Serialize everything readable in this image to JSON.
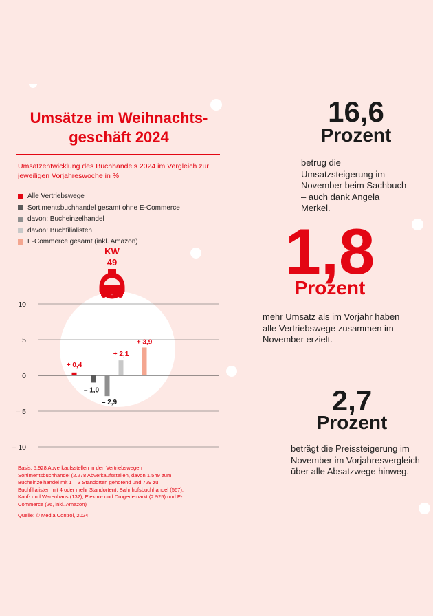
{
  "title": "Umsätze im Weihnachts-\ngeschäft 2024",
  "subtitle": "Umsatzentwicklung des Buchhandels 2024 im Vergleich zur jeweiligen Vorjahreswoche in %",
  "chart_data": {
    "type": "bar",
    "title": "Umsätze im Weihnachtsgeschäft 2024",
    "subtitle": "Umsatzentwicklung des Buchhandels 2024 im Vergleich zur jeweiligen Vorjahreswoche in %",
    "week_label": "KW",
    "week_number": "49",
    "xlabel": "",
    "ylabel": "",
    "ylim": [
      -10,
      10
    ],
    "yticks": [
      10,
      5,
      0,
      -5,
      -10
    ],
    "ytick_labels": [
      "10",
      "5",
      "0",
      "– 5",
      "– 10"
    ],
    "grid": true,
    "legend_position": "top-left",
    "series": [
      {
        "name": "Alle Vertriebswege",
        "values": [
          0.4
        ],
        "value_label": "+ 0,4",
        "color": "#e30613"
      },
      {
        "name": "Sortimentsbuchhandel gesamt ohne E-Commerce",
        "values": [
          -1.0
        ],
        "value_label": "– 1,0",
        "color": "#5a5a5a"
      },
      {
        "name": "davon: Bucheinzelhandel",
        "values": [
          -2.9
        ],
        "value_label": "– 2,9",
        "color": "#8f8f8f"
      },
      {
        "name": "davon: Buchfilialisten",
        "values": [
          2.1
        ],
        "value_label": "+ 2,1",
        "color": "#c8c8c8"
      },
      {
        "name": "E-Commerce gesamt (inkl. Amazon)",
        "values": [
          3.9
        ],
        "value_label": "+ 3,9",
        "color": "#f4a690"
      }
    ]
  },
  "footnote": "Basis: 5.928 Abverkaufsstellen in den Vertriebswegen Sortimentsbuchhandel (2.278 Abverkaufsstellen, davon 1.549 zum Bucheinzelhandel mit 1 – 3 Standorten gehörend und 729 zu Buchfilialisten mit 4 oder mehr Standorten), Bahnhofsbuchhandel (567), Kauf- und Warenhaus (132), Elektro- und Drogeriemarkt (2.925) und E-Commerce (26, inkl. Amazon)",
  "source": "Quelle: © Media Control, 2024",
  "stats": [
    {
      "number": "16,6",
      "unit": "Prozent",
      "text": "betrug die Umsatzsteigerung im November beim Sachbuch – auch dank Angela Merkel."
    },
    {
      "number": "1,8",
      "unit": "Prozent",
      "text": "mehr Umsatz als im Vorjahr haben alle Vertriebswege zusammen im November erzielt."
    },
    {
      "number": "2,7",
      "unit": "Prozent",
      "text": "beträgt die Preissteigerung im November im Vorjahresvergleich über alle Absatzwege hinweg."
    }
  ],
  "colors": {
    "accent": "#e30613",
    "background": "#fde8e4"
  }
}
